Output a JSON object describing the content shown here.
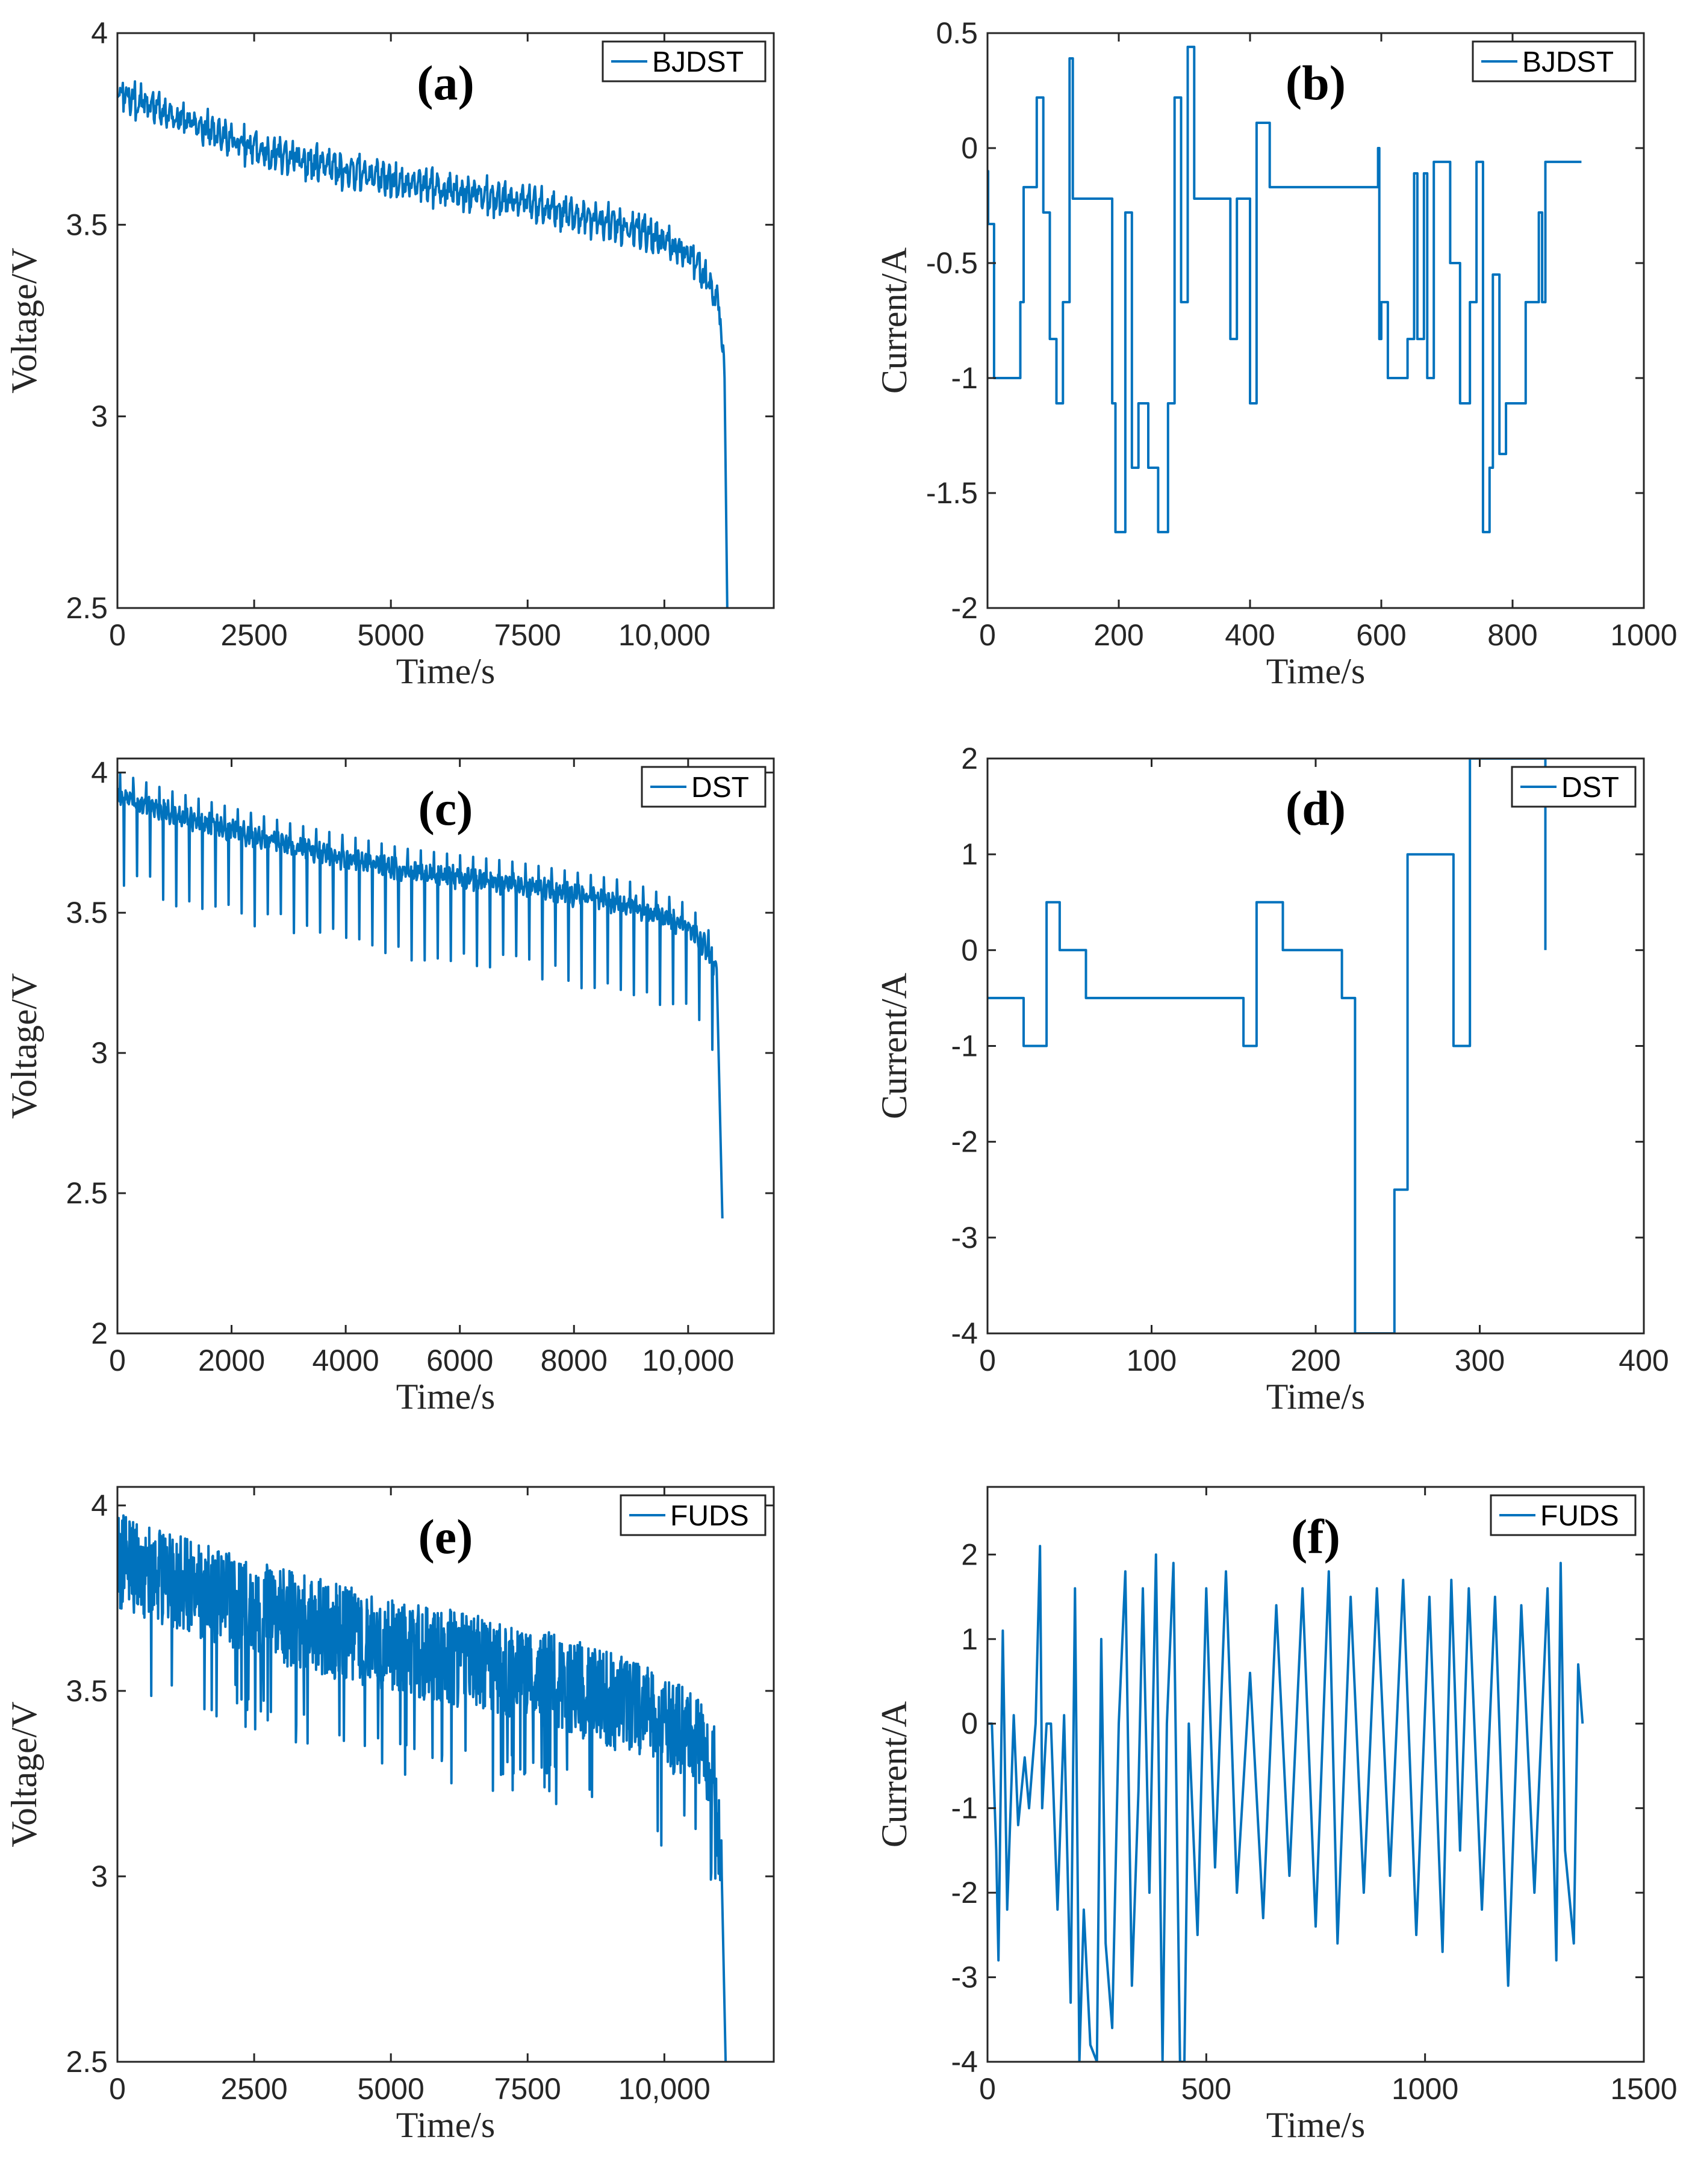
{
  "chart_data": [
    {
      "type": "line",
      "panel": "a",
      "title": "(a)",
      "xlabel": "Time/s",
      "ylabel": "Voltage/V",
      "xlim": [
        0,
        12000
      ],
      "ylim": [
        2.5,
        4
      ],
      "xticks": [
        0,
        2500,
        5000,
        7500,
        10000
      ],
      "xtick_labels": [
        "0",
        "2500",
        "5000",
        "7500",
        "10,000"
      ],
      "yticks": [
        2.5,
        3,
        3.5,
        4
      ],
      "ytick_labels": [
        "2.5",
        "3",
        "3.5",
        "4"
      ],
      "legend": "BJDST",
      "legend_position": "top-right",
      "series": [
        {
          "name": "BJDST",
          "color": "#0072BD",
          "x": [
            0,
            500,
            2500,
            5000,
            7500,
            9500,
            10500,
            10800,
            11000,
            11100,
            11150
          ],
          "y": [
            3.85,
            3.82,
            3.7,
            3.62,
            3.56,
            3.49,
            3.42,
            3.35,
            3.3,
            3.1,
            2.5
          ]
        }
      ]
    },
    {
      "type": "line",
      "panel": "b",
      "title": "(b)",
      "xlabel": "Time/s",
      "ylabel": "Current/A",
      "xlim": [
        0,
        1000
      ],
      "ylim": [
        -2,
        0.5
      ],
      "xticks": [
        0,
        200,
        400,
        600,
        800,
        1000
      ],
      "xtick_labels": [
        "0",
        "200",
        "400",
        "600",
        "800",
        "1000"
      ],
      "yticks": [
        -2,
        -1.5,
        -1,
        -0.5,
        0,
        0.5
      ],
      "ytick_labels": [
        "-2",
        "-1.5",
        "-1",
        "-0.5",
        "0",
        "0.5"
      ],
      "legend": "BJDST",
      "legend_position": "top-right",
      "series": [
        {
          "name": "BJDST",
          "color": "#0072BD",
          "x": [
            0,
            1,
            5,
            10,
            15,
            50,
            55,
            65,
            75,
            85,
            95,
            105,
            115,
            125,
            130,
            135,
            140,
            190,
            195,
            205,
            210,
            220,
            230,
            245,
            260,
            275,
            285,
            295,
            305,
            315,
            325,
            335,
            370,
            380,
            400,
            410,
            430,
            440,
            595,
            597,
            600,
            610,
            640,
            650,
            655,
            665,
            670,
            680,
            695,
            705,
            720,
            735,
            745,
            755,
            765,
            770,
            780,
            790,
            800,
            820,
            840,
            845,
            850,
            855,
            865,
            905
          ],
          "y": [
            -0.1,
            -0.33,
            -0.33,
            -1.0,
            -1.0,
            -0.67,
            -0.17,
            -0.17,
            0.22,
            -0.28,
            -0.83,
            -1.11,
            -0.67,
            0.39,
            -0.22,
            -0.22,
            -0.22,
            -1.11,
            -1.67,
            -1.67,
            -0.28,
            -1.39,
            -1.11,
            -1.39,
            -1.67,
            -1.11,
            0.22,
            -0.67,
            0.44,
            -0.22,
            -0.22,
            -0.22,
            -0.83,
            -0.22,
            -1.11,
            0.11,
            -0.17,
            -0.17,
            0.0,
            -0.83,
            -0.67,
            -1.0,
            -0.83,
            -0.11,
            -0.83,
            -0.11,
            -1.0,
            -0.06,
            -0.06,
            -0.5,
            -1.11,
            -0.67,
            -0.06,
            -1.67,
            -1.39,
            -0.55,
            -1.33,
            -1.11,
            -1.11,
            -0.67,
            -0.28,
            -0.67,
            -0.06,
            -0.06,
            -0.06,
            -0.06
          ]
        }
      ]
    },
    {
      "type": "line",
      "panel": "c",
      "title": "(c)",
      "xlabel": "Time/s",
      "ylabel": "Voltage/V",
      "xlim": [
        0,
        11500
      ],
      "ylim": [
        2,
        4.05
      ],
      "xticks": [
        0,
        2000,
        4000,
        6000,
        8000,
        10000
      ],
      "xtick_labels": [
        "0",
        "2000",
        "4000",
        "6000",
        "8000",
        "10,000"
      ],
      "yticks": [
        2,
        2.5,
        3,
        3.5,
        4
      ],
      "ytick_labels": [
        "2",
        "2.5",
        "3",
        "3.5",
        "4"
      ],
      "legend": "DST",
      "legend_position": "top-right",
      "series": [
        {
          "name": "DST",
          "color": "#0072BD",
          "x": [
            0,
            1000,
            3000,
            5000,
            7000,
            9000,
            10000,
            10300,
            10500,
            10600
          ],
          "y": [
            3.92,
            3.85,
            3.74,
            3.65,
            3.6,
            3.53,
            3.45,
            3.38,
            3.3,
            2.41
          ]
        }
      ]
    },
    {
      "type": "line",
      "panel": "d",
      "title": "(d)",
      "xlabel": "Time/s",
      "ylabel": "Current/A",
      "xlim": [
        0,
        400
      ],
      "ylim": [
        -4,
        2
      ],
      "xticks": [
        0,
        100,
        200,
        300,
        400
      ],
      "xtick_labels": [
        "0",
        "100",
        "200",
        "300",
        "400"
      ],
      "yticks": [
        -4,
        -3,
        -2,
        -1,
        0,
        1,
        2
      ],
      "ytick_labels": [
        "-4",
        "-3",
        "-2",
        "-1",
        "0",
        "1",
        "2"
      ],
      "legend": "DST",
      "legend_position": "top-right",
      "series": [
        {
          "name": "DST",
          "color": "#0072BD",
          "x": [
            0,
            22,
            36,
            44,
            60,
            144,
            156,
            164,
            180,
            216,
            224,
            248,
            256,
            284,
            294,
            340
          ],
          "y": [
            -0.5,
            -1.0,
            0.5,
            0.0,
            -0.5,
            -0.5,
            -1.0,
            0.5,
            0.0,
            -0.5,
            -4.0,
            -2.5,
            1.0,
            -1.0,
            2.0,
            0.0
          ]
        }
      ]
    },
    {
      "type": "line",
      "panel": "e",
      "title": "(e)",
      "xlabel": "Time/s",
      "ylabel": "Voltage/V",
      "xlim": [
        0,
        12000
      ],
      "ylim": [
        2.5,
        4.05
      ],
      "xticks": [
        0,
        2500,
        5000,
        7500,
        10000
      ],
      "xtick_labels": [
        "0",
        "2500",
        "5000",
        "7500",
        "10,000"
      ],
      "yticks": [
        2.5,
        3,
        3.5,
        4
      ],
      "ytick_labels": [
        "2.5",
        "3",
        "3.5",
        "4"
      ],
      "legend": "FUDS",
      "legend_position": "top-right",
      "series": [
        {
          "name": "FUDS",
          "color": "#0072BD",
          "x": [
            0,
            500,
            2500,
            5000,
            7500,
            9500,
            10500,
            10900,
            11050,
            11120
          ],
          "y": [
            3.85,
            3.82,
            3.72,
            3.62,
            3.55,
            3.45,
            3.38,
            3.3,
            3.0,
            2.5
          ]
        }
      ]
    },
    {
      "type": "line",
      "panel": "f",
      "title": "(f)",
      "xlabel": "Time/s",
      "ylabel": "Current/A",
      "xlim": [
        0,
        1500
      ],
      "ylim": [
        -4,
        2.8
      ],
      "xticks": [
        0,
        500,
        1000,
        1500
      ],
      "xtick_labels": [
        "0",
        "500",
        "1000",
        "1500"
      ],
      "yticks": [
        -4,
        -3,
        -2,
        -1,
        0,
        1,
        2
      ],
      "ytick_labels": [
        "-4",
        "-3",
        "-2",
        "-1",
        "0",
        "1",
        "2"
      ],
      "legend": "FUDS",
      "legend_position": "top-right",
      "series": [
        {
          "name": "FUDS",
          "color": "#0072BD",
          "x": [
            0,
            10,
            20,
            25,
            35,
            45,
            60,
            70,
            85,
            95,
            110,
            120,
            125,
            135,
            145,
            160,
            175,
            190,
            200,
            210,
            220,
            235,
            250,
            260,
            270,
            285,
            300,
            315,
            330,
            345,
            355,
            370,
            385,
            400,
            410,
            425,
            440,
            450,
            460,
            480,
            500,
            520,
            545,
            570,
            600,
            630,
            660,
            690,
            720,
            750,
            780,
            800,
            830,
            860,
            890,
            920,
            950,
            980,
            1010,
            1040,
            1060,
            1080,
            1100,
            1130,
            1160,
            1190,
            1220,
            1250,
            1280,
            1300,
            1310,
            1320,
            1340,
            1350,
            1360
          ],
          "y": [
            0.0,
            0.0,
            -1.5,
            -2.8,
            1.1,
            -2.2,
            0.1,
            -1.2,
            -0.4,
            -1.0,
            0.0,
            2.1,
            -1.0,
            0.0,
            0.0,
            -2.2,
            0.1,
            -3.3,
            1.6,
            -4.0,
            -2.2,
            -3.8,
            -4.0,
            1.0,
            -2.6,
            -3.6,
            0.0,
            1.8,
            -3.1,
            -0.8,
            1.6,
            -2.0,
            2.0,
            -4.0,
            0.0,
            1.9,
            -4.0,
            -4.0,
            0.0,
            -2.5,
            1.6,
            -1.7,
            1.8,
            -2.0,
            0.6,
            -2.3,
            1.4,
            -1.8,
            1.6,
            -2.4,
            1.8,
            -2.6,
            1.5,
            -2.0,
            1.6,
            -1.8,
            1.7,
            -2.5,
            1.5,
            -2.7,
            1.7,
            -1.5,
            1.6,
            -2.2,
            1.5,
            -3.1,
            1.4,
            -2.0,
            1.6,
            -2.8,
            1.9,
            -1.5,
            -2.6,
            0.7,
            0.0
          ]
        }
      ]
    }
  ]
}
